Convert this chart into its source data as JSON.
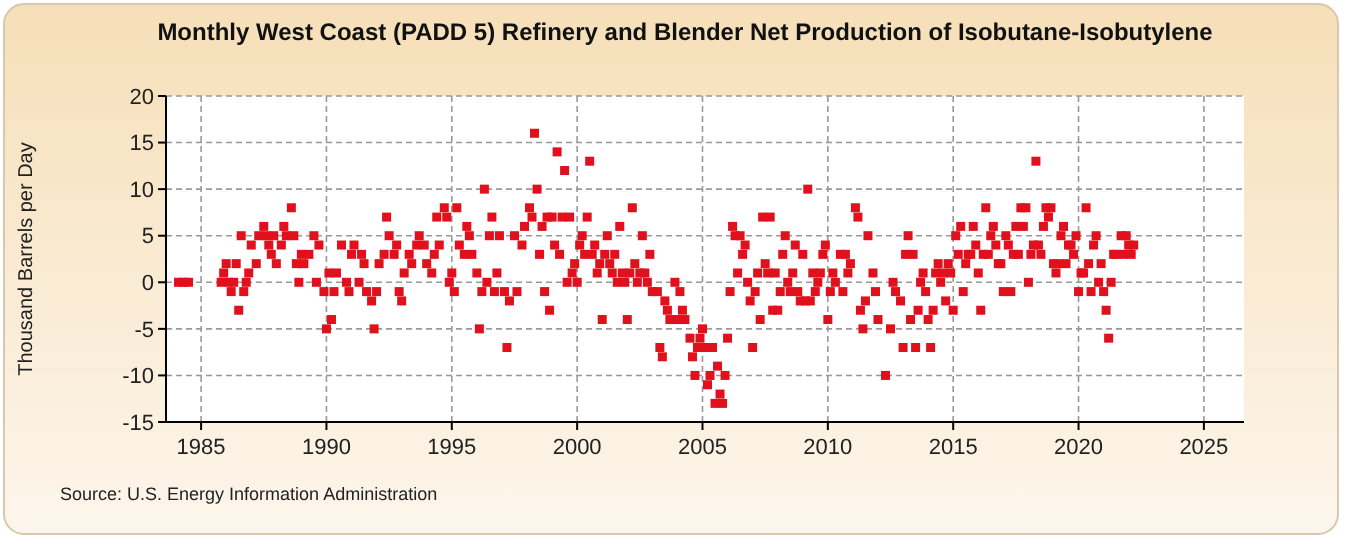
{
  "chart_data": {
    "type": "scatter",
    "title": "Monthly West Coast (PADD 5) Refinery and Blender Net Production of Isobutane-Isobutylene",
    "ylabel": "Thousand Barrels per Day",
    "annotations": [
      "Source: U.S. Energy Information Administration"
    ],
    "x": [
      1984.1,
      1984.3,
      1984.5,
      1985.8,
      1985.9,
      1986.0,
      1986.1,
      1986.2,
      1986.3,
      1986.4,
      1986.5,
      1986.6,
      1986.7,
      1986.8,
      1986.9,
      1987.0,
      1987.2,
      1987.3,
      1987.5,
      1987.6,
      1987.7,
      1987.8,
      1987.9,
      1988.0,
      1988.2,
      1988.3,
      1988.4,
      1988.6,
      1988.7,
      1988.8,
      1988.9,
      1989.0,
      1989.1,
      1989.3,
      1989.5,
      1989.6,
      1989.7,
      1989.9,
      1990.0,
      1990.1,
      1990.2,
      1990.3,
      1990.4,
      1990.6,
      1990.8,
      1990.9,
      1991.0,
      1991.1,
      1991.3,
      1991.4,
      1991.5,
      1991.6,
      1991.8,
      1991.9,
      1992.0,
      1992.1,
      1992.3,
      1992.4,
      1992.5,
      1992.7,
      1992.8,
      1992.9,
      1993.0,
      1993.1,
      1993.3,
      1993.4,
      1993.6,
      1993.7,
      1993.9,
      1994.0,
      1994.2,
      1994.3,
      1994.4,
      1994.5,
      1994.7,
      1994.8,
      1994.9,
      1995.0,
      1995.1,
      1995.2,
      1995.3,
      1995.5,
      1995.6,
      1995.7,
      1995.8,
      1996.0,
      1996.1,
      1996.2,
      1996.3,
      1996.4,
      1996.5,
      1996.6,
      1996.7,
      1996.8,
      1996.9,
      1997.1,
      1997.2,
      1997.3,
      1997.5,
      1997.6,
      1997.8,
      1997.9,
      1998.1,
      1998.2,
      1998.3,
      1998.4,
      1998.5,
      1998.6,
      1998.7,
      1998.8,
      1998.9,
      1999.0,
      1999.1,
      1999.2,
      1999.3,
      1999.4,
      1999.5,
      1999.6,
      1999.7,
      1999.8,
      1999.9,
      2000.0,
      2000.1,
      2000.2,
      2000.3,
      2000.4,
      2000.5,
      2000.6,
      2000.7,
      2000.8,
      2000.9,
      2001.0,
      2001.1,
      2001.2,
      2001.3,
      2001.4,
      2001.5,
      2001.6,
      2001.7,
      2001.8,
      2001.9,
      2002.0,
      2002.1,
      2002.2,
      2002.3,
      2002.4,
      2002.5,
      2002.6,
      2002.7,
      2002.8,
      2002.9,
      2003.0,
      2003.2,
      2003.3,
      2003.4,
      2003.5,
      2003.6,
      2003.7,
      2003.9,
      2004.0,
      2004.1,
      2004.2,
      2004.3,
      2004.5,
      2004.6,
      2004.7,
      2004.8,
      2004.9,
      2005.0,
      2005.1,
      2005.2,
      2005.3,
      2005.4,
      2005.5,
      2005.6,
      2005.7,
      2005.8,
      2005.9,
      2006.0,
      2006.1,
      2006.2,
      2006.3,
      2006.4,
      2006.5,
      2006.6,
      2006.7,
      2006.8,
      2006.9,
      2007.0,
      2007.1,
      2007.2,
      2007.3,
      2007.4,
      2007.5,
      2007.6,
      2007.7,
      2007.8,
      2007.9,
      2008.0,
      2008.1,
      2008.2,
      2008.3,
      2008.4,
      2008.5,
      2008.6,
      2008.7,
      2008.8,
      2008.9,
      2009.0,
      2009.1,
      2009.2,
      2009.3,
      2009.4,
      2009.5,
      2009.6,
      2009.7,
      2009.8,
      2009.9,
      2010.0,
      2010.1,
      2010.2,
      2010.3,
      2010.5,
      2010.6,
      2010.7,
      2010.8,
      2010.9,
      2011.1,
      2011.2,
      2011.3,
      2011.4,
      2011.5,
      2011.6,
      2011.8,
      2011.9,
      2012.0,
      2012.3,
      2012.5,
      2012.6,
      2012.7,
      2012.9,
      2013.0,
      2013.1,
      2013.2,
      2013.3,
      2013.4,
      2013.5,
      2013.6,
      2013.7,
      2013.8,
      2013.9,
      2014.0,
      2014.1,
      2014.2,
      2014.3,
      2014.4,
      2014.5,
      2014.6,
      2014.7,
      2014.8,
      2014.9,
      2015.0,
      2015.1,
      2015.2,
      2015.3,
      2015.4,
      2015.5,
      2015.6,
      2015.7,
      2015.8,
      2015.9,
      2016.0,
      2016.1,
      2016.2,
      2016.3,
      2016.4,
      2016.5,
      2016.6,
      2016.7,
      2016.8,
      2016.9,
      2017.0,
      2017.1,
      2017.2,
      2017.3,
      2017.4,
      2017.5,
      2017.6,
      2017.7,
      2017.8,
      2017.9,
      2018.0,
      2018.1,
      2018.2,
      2018.3,
      2018.4,
      2018.5,
      2018.6,
      2018.7,
      2018.8,
      2018.9,
      2019.0,
      2019.1,
      2019.2,
      2019.3,
      2019.4,
      2019.5,
      2019.6,
      2019.7,
      2019.8,
      2019.9,
      2020.0,
      2020.1,
      2020.2,
      2020.3,
      2020.4,
      2020.5,
      2020.6,
      2020.7,
      2020.8,
      2020.9,
      2021.0,
      2021.1,
      2021.2,
      2021.3,
      2021.4,
      2021.5,
      2021.7,
      2021.8,
      2021.9,
      2022.0,
      2022.1,
      2022.2
    ],
    "series": [
      {
        "color": "#e0101c",
        "values": [
          0,
          0,
          0,
          0,
          1,
          2,
          0,
          -1,
          0,
          2,
          -3,
          5,
          -1,
          0,
          1,
          4,
          2,
          5,
          6,
          5,
          4,
          3,
          5,
          2,
          4,
          6,
          5,
          8,
          5,
          2,
          0,
          3,
          2,
          3,
          5,
          0,
          4,
          -1,
          -5,
          1,
          -4,
          -1,
          1,
          4,
          0,
          -1,
          3,
          4,
          0,
          3,
          2,
          -1,
          -2,
          -5,
          -1,
          2,
          3,
          7,
          5,
          3,
          4,
          -1,
          -2,
          1,
          3,
          2,
          4,
          5,
          4,
          2,
          1,
          3,
          7,
          4,
          8,
          7,
          0,
          1,
          -1,
          8,
          4,
          3,
          6,
          5,
          3,
          1,
          -5,
          -1,
          10,
          0,
          5,
          7,
          -1,
          1,
          5,
          -1,
          -7,
          -2,
          5,
          -1,
          4,
          6,
          8,
          7,
          16,
          10,
          3,
          6,
          -1,
          7,
          -3,
          7,
          4,
          14,
          3,
          7,
          12,
          0,
          7,
          1,
          2,
          0,
          4,
          5,
          3,
          7,
          13,
          3,
          4,
          1,
          2,
          -4,
          3,
          5,
          2,
          1,
          3,
          0,
          6,
          1,
          0,
          -4,
          1,
          8,
          2,
          0,
          1,
          5,
          1,
          0,
          3,
          -1,
          -1,
          -7,
          -8,
          -2,
          -3,
          -4,
          0,
          -4,
          -1,
          -3,
          -4,
          -6,
          -8,
          -10,
          -7,
          -6,
          -5,
          -7,
          -11,
          -10,
          -7,
          -13,
          -9,
          -12,
          -13,
          -10,
          -6,
          -1,
          6,
          5,
          1,
          5,
          3,
          4,
          0,
          -2,
          -7,
          -1,
          1,
          -4,
          7,
          2,
          1,
          7,
          -3,
          1,
          -3,
          -1,
          3,
          5,
          0,
          -1,
          1,
          4,
          -1,
          -2,
          3,
          -2,
          10,
          -2,
          1,
          -1,
          0,
          1,
          3,
          4,
          -4,
          -1,
          1,
          0,
          3,
          -1,
          3,
          1,
          2,
          8,
          7,
          -3,
          -5,
          -2,
          5,
          1,
          -1,
          -4,
          -10,
          -5,
          0,
          -1,
          -2,
          -7,
          3,
          5,
          -4,
          3,
          -7,
          -3,
          0,
          1,
          -1,
          -4,
          -7,
          -3,
          1,
          2,
          0,
          1,
          -2,
          2,
          1,
          -3,
          5,
          3,
          6,
          -1,
          2,
          3,
          3,
          6,
          4,
          1,
          -3,
          3,
          8,
          3,
          5,
          6,
          4,
          2,
          2,
          -1,
          5,
          4,
          -1,
          3,
          6,
          3,
          8,
          6,
          8,
          0,
          3,
          4,
          13,
          4,
          3,
          6,
          8,
          7,
          8,
          2,
          1,
          2,
          5,
          6,
          2,
          4,
          4,
          3,
          5,
          -1,
          1,
          1,
          8,
          2,
          -1,
          4,
          5,
          0,
          2,
          -1,
          -3,
          -6,
          0,
          3,
          3,
          5,
          3,
          5,
          4,
          3,
          4
        ]
      }
    ],
    "xlim": [
      1983.6,
      2026.6
    ],
    "xticks": [
      1985,
      1990,
      1995,
      2000,
      2005,
      2010,
      2015,
      2020,
      2025
    ],
    "ylim": [
      -15,
      20
    ],
    "yticks": [
      -15,
      -10,
      -5,
      0,
      5,
      10,
      15,
      20
    ],
    "grid": true,
    "marker": "square"
  }
}
